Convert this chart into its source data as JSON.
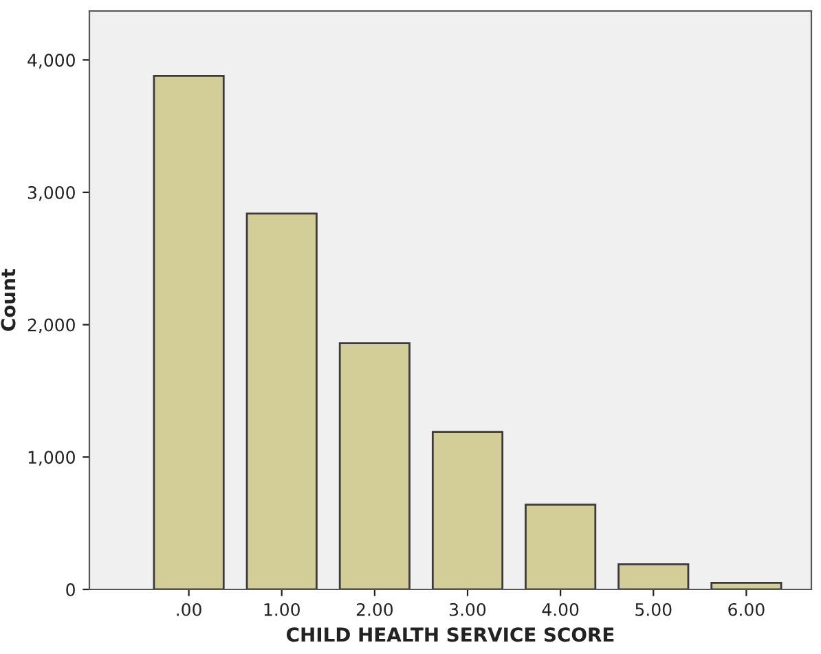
{
  "chart_data": {
    "type": "bar",
    "xlabel": "CHILD HEALTH SERVICE SCORE",
    "ylabel": "Count",
    "categories": [
      ".00",
      "1.00",
      "2.00",
      "3.00",
      "4.00",
      "5.00",
      "6.00"
    ],
    "values": [
      3880,
      2840,
      1860,
      1190,
      640,
      190,
      50
    ],
    "color": "#d3ce97",
    "ylim": [
      0,
      4370
    ],
    "yticks": [
      0,
      {
        "value": 1000,
        "label": "1,000"
      },
      {
        "value": 2000,
        "label": "2,000"
      },
      {
        "value": 3000,
        "label": "3,000"
      },
      {
        "value": 4000,
        "label": "4,000"
      }
    ],
    "grid": false
  }
}
